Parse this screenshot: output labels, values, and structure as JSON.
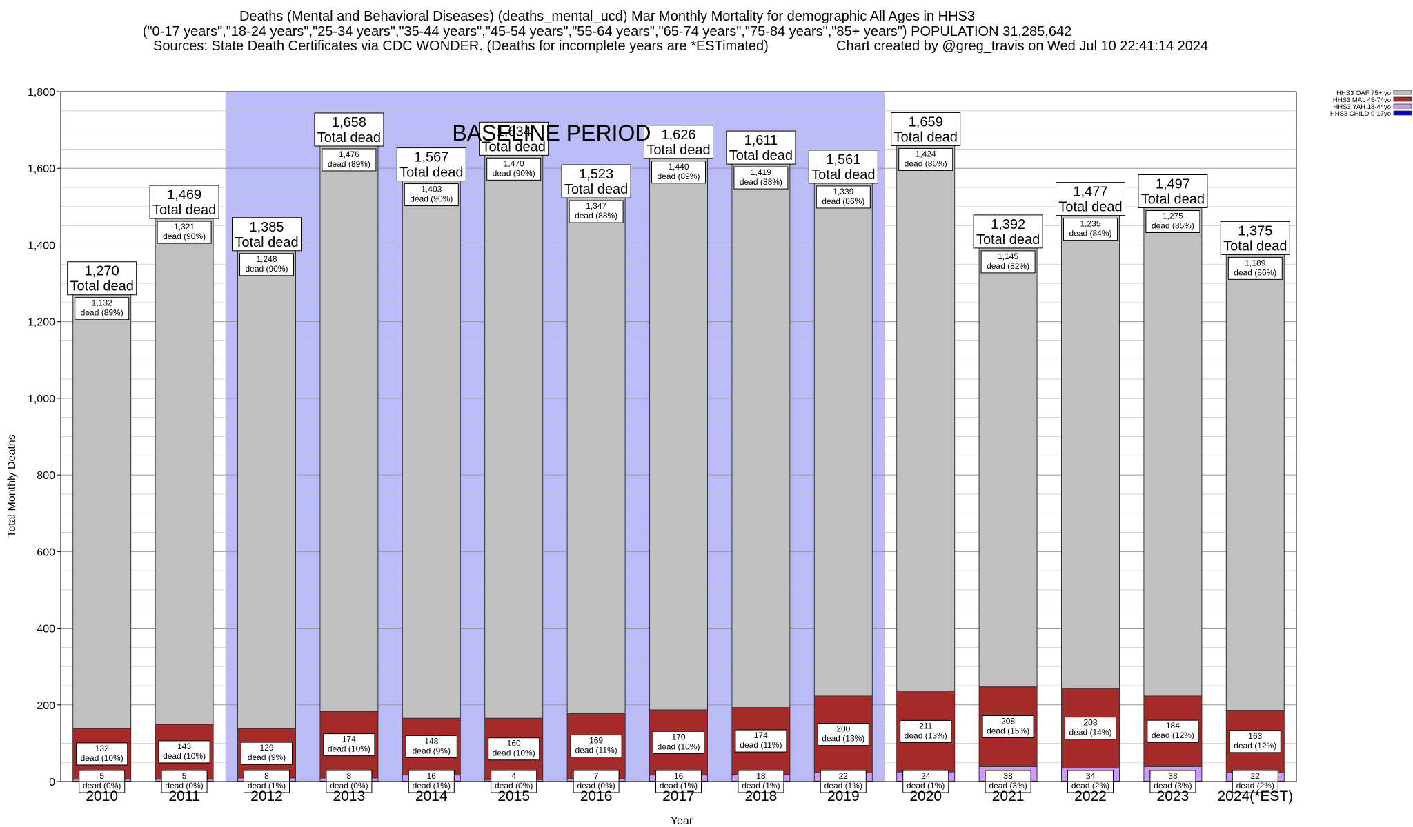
{
  "chart_data": {
    "type": "bar",
    "stacked": true,
    "title_lines": [
      "Deaths (Mental and Behavioral Diseases) (deaths_mental_ucd) Mar Monthly Mortality for demographic All Ages in HHS3",
      "(\"0-17 years\",\"18-24 years\",\"25-34 years\",\"35-44 years\",\"45-54 years\",\"55-64 years\",\"65-74 years\",\"75-84 years\",\"85+ years\") POPULATION 31,285,642",
      "Sources: State Death Certificates via CDC WONDER. (Deaths for incomplete years are *ESTimated)",
      "Chart created by @greg_travis on Wed Jul 10 22:41:14 2024"
    ],
    "xlabel": "Year",
    "ylabel": "Total Monthly Deaths",
    "ylim": [
      0,
      1800
    ],
    "yticks": [
      0,
      200,
      400,
      600,
      800,
      1000,
      1200,
      1400,
      1600,
      1800
    ],
    "ytick_labels": [
      "0",
      "200",
      "400",
      "600",
      "800",
      "1,000",
      "1,200",
      "1,400",
      "1,600",
      "1,800"
    ],
    "categories": [
      "2010",
      "2011",
      "2012",
      "2013",
      "2014",
      "2015",
      "2016",
      "2017",
      "2018",
      "2019",
      "2020",
      "2021",
      "2022",
      "2023",
      "2024(*EST)"
    ],
    "series": [
      {
        "name": "HHS3 CHILD 0-17yo",
        "color": "#0000cc",
        "values": [
          1,
          1,
          1,
          1,
          1,
          1,
          1,
          1,
          1,
          1,
          1,
          1,
          1,
          1,
          1
        ]
      },
      {
        "name": "HHS3 YAH 18-44yo",
        "color": "#cc99ff",
        "values": [
          5,
          5,
          8,
          8,
          16,
          4,
          7,
          16,
          18,
          22,
          24,
          38,
          34,
          38,
          22
        ]
      },
      {
        "name": "HHS3 MAL 45-74yo",
        "color": "#a52a2a",
        "values": [
          132,
          143,
          129,
          174,
          148,
          160,
          169,
          170,
          174,
          200,
          211,
          208,
          208,
          184,
          163
        ]
      },
      {
        "name": "HHS3 OAF 75+ yo",
        "color": "#c0c0c0",
        "values": [
          1132,
          1321,
          1248,
          1476,
          1403,
          1470,
          1347,
          1440,
          1419,
          1339,
          1424,
          1145,
          1235,
          1275,
          1189
        ]
      }
    ],
    "totals": [
      1270,
      1469,
      1385,
      1658,
      1567,
      1634,
      1523,
      1626,
      1611,
      1561,
      1659,
      1392,
      1477,
      1497,
      1375
    ],
    "total_labels": [
      "1,270",
      "1,469",
      "1,385",
      "1,658",
      "1,567",
      "1,634",
      "1,523",
      "1,626",
      "1,611",
      "1,561",
      "1,659",
      "1,392",
      "1,477",
      "1,497",
      "1,375"
    ],
    "total_suffix": "Total dead",
    "oaf_labels": [
      [
        "1,132",
        "dead (89%)"
      ],
      [
        "1,321",
        "dead (90%)"
      ],
      [
        "1,248",
        "dead (90%)"
      ],
      [
        "1,476",
        "dead (89%)"
      ],
      [
        "1,403",
        "dead (90%)"
      ],
      [
        "1,470",
        "dead (90%)"
      ],
      [
        "1,347",
        "dead (88%)"
      ],
      [
        "1,440",
        "dead (89%)"
      ],
      [
        "1,419",
        "dead (88%)"
      ],
      [
        "1,339",
        "dead (86%)"
      ],
      [
        "1,424",
        "dead (86%)"
      ],
      [
        "1,145",
        "dead (82%)"
      ],
      [
        "1,235",
        "dead (84%)"
      ],
      [
        "1,275",
        "dead (85%)"
      ],
      [
        "1,189",
        "dead (86%)"
      ]
    ],
    "mal_labels": [
      [
        "132",
        "dead (10%)"
      ],
      [
        "143",
        "dead (10%)"
      ],
      [
        "129",
        "dead (9%)"
      ],
      [
        "174",
        "dead (10%)"
      ],
      [
        "148",
        "dead (9%)"
      ],
      [
        "160",
        "dead (10%)"
      ],
      [
        "169",
        "dead (11%)"
      ],
      [
        "170",
        "dead (10%)"
      ],
      [
        "174",
        "dead (11%)"
      ],
      [
        "200",
        "dead (13%)"
      ],
      [
        "211",
        "dead (13%)"
      ],
      [
        "208",
        "dead (15%)"
      ],
      [
        "208",
        "dead (14%)"
      ],
      [
        "184",
        "dead (12%)"
      ],
      [
        "163",
        "dead (12%)"
      ]
    ],
    "yah_labels": [
      [
        "5",
        "dead (0%)"
      ],
      [
        "5",
        "dead (0%)"
      ],
      [
        "8",
        "dead (1%)"
      ],
      [
        "8",
        "dead (0%)"
      ],
      [
        "16",
        "dead (1%)"
      ],
      [
        "4",
        "dead (0%)"
      ],
      [
        "7",
        "dead (0%)"
      ],
      [
        "16",
        "dead (1%)"
      ],
      [
        "18",
        "dead (1%)"
      ],
      [
        "22",
        "dead (1%)"
      ],
      [
        "24",
        "dead (1%)"
      ],
      [
        "38",
        "dead (3%)"
      ],
      [
        "34",
        "dead (2%)"
      ],
      [
        "38",
        "dead (3%)"
      ],
      [
        "22",
        "dead (2%)"
      ]
    ],
    "baseline": {
      "label": "BASELINE PERIOD",
      "start": "2012",
      "end": "2019",
      "color": "#bbbbf7"
    },
    "legend_placement": "top-right",
    "grid": "horizontal"
  }
}
